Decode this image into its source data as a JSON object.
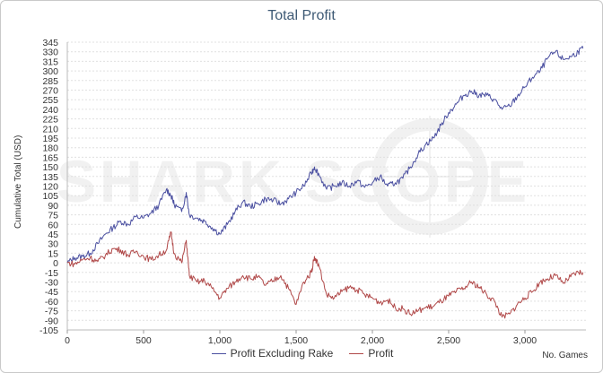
{
  "chart_data": {
    "type": "line",
    "title": "Total Profit",
    "xlabel": "No. Games",
    "ylabel": "Cumulative Total (USD)",
    "xlim": [
      0,
      3400
    ],
    "ylim": [
      -105,
      345
    ],
    "x_ticks": [
      0,
      500,
      1000,
      1500,
      2000,
      2500,
      3000
    ],
    "x_tick_labels": [
      "0",
      "500",
      "1,000",
      "1,500",
      "2,000",
      "2,500",
      "3,000"
    ],
    "y_ticks": [
      345,
      330,
      315,
      300,
      285,
      270,
      255,
      240,
      225,
      210,
      195,
      180,
      165,
      150,
      135,
      120,
      105,
      90,
      75,
      60,
      45,
      30,
      15,
      0,
      -15,
      -30,
      -45,
      -60,
      -75,
      -90,
      -105
    ],
    "grid": true,
    "legend_position": "bottom",
    "watermark": "SHARK SCOPE",
    "series": [
      {
        "name": "Profit Excluding Rake",
        "color": "#4a4fa0",
        "x": [
          0,
          50,
          100,
          150,
          200,
          250,
          300,
          350,
          400,
          450,
          500,
          550,
          600,
          650,
          680,
          700,
          750,
          780,
          800,
          850,
          900,
          950,
          1000,
          1050,
          1100,
          1150,
          1200,
          1250,
          1300,
          1350,
          1400,
          1450,
          1500,
          1550,
          1600,
          1620,
          1650,
          1700,
          1750,
          1800,
          1850,
          1900,
          1950,
          2000,
          2050,
          2100,
          2150,
          2200,
          2250,
          2300,
          2350,
          2400,
          2450,
          2500,
          2550,
          2600,
          2650,
          2700,
          2750,
          2800,
          2850,
          2900,
          2950,
          3000,
          3050,
          3100,
          3150,
          3200,
          3250,
          3300,
          3350,
          3380
        ],
        "values": [
          0,
          8,
          10,
          15,
          30,
          45,
          55,
          65,
          60,
          72,
          70,
          78,
          90,
          115,
          105,
          92,
          80,
          110,
          75,
          70,
          65,
          55,
          45,
          60,
          80,
          95,
          88,
          92,
          100,
          98,
          92,
          100,
          110,
          120,
          140,
          150,
          138,
          115,
          120,
          125,
          120,
          128,
          118,
          125,
          135,
          120,
          125,
          132,
          150,
          170,
          185,
          195,
          215,
          235,
          248,
          262,
          268,
          262,
          262,
          255,
          240,
          245,
          260,
          275,
          290,
          300,
          320,
          330,
          318,
          322,
          330,
          335
        ]
      },
      {
        "name": "Profit",
        "color": "#b04848",
        "x": [
          0,
          50,
          100,
          150,
          200,
          250,
          300,
          350,
          400,
          450,
          500,
          550,
          600,
          650,
          680,
          700,
          750,
          780,
          800,
          850,
          900,
          950,
          1000,
          1050,
          1100,
          1150,
          1200,
          1250,
          1300,
          1350,
          1400,
          1450,
          1500,
          1550,
          1600,
          1620,
          1650,
          1700,
          1750,
          1800,
          1850,
          1900,
          1950,
          2000,
          2050,
          2100,
          2150,
          2200,
          2250,
          2300,
          2350,
          2400,
          2450,
          2500,
          2550,
          2600,
          2650,
          2700,
          2750,
          2800,
          2850,
          2900,
          2950,
          3000,
          3050,
          3100,
          3150,
          3200,
          3250,
          3300,
          3350,
          3380
        ],
        "values": [
          0,
          -2,
          5,
          8,
          2,
          12,
          22,
          20,
          12,
          18,
          10,
          5,
          12,
          20,
          48,
          15,
          0,
          35,
          -20,
          -30,
          -28,
          -40,
          -55,
          -40,
          -30,
          -20,
          -25,
          -22,
          -35,
          -28,
          -20,
          -40,
          -65,
          -30,
          -15,
          10,
          -5,
          -50,
          -55,
          -45,
          -38,
          -42,
          -50,
          -55,
          -62,
          -58,
          -70,
          -72,
          -80,
          -75,
          -70,
          -68,
          -60,
          -52,
          -45,
          -40,
          -30,
          -38,
          -50,
          -60,
          -85,
          -80,
          -65,
          -55,
          -45,
          -30,
          -25,
          -20,
          -32,
          -22,
          -15,
          -15
        ]
      }
    ]
  }
}
